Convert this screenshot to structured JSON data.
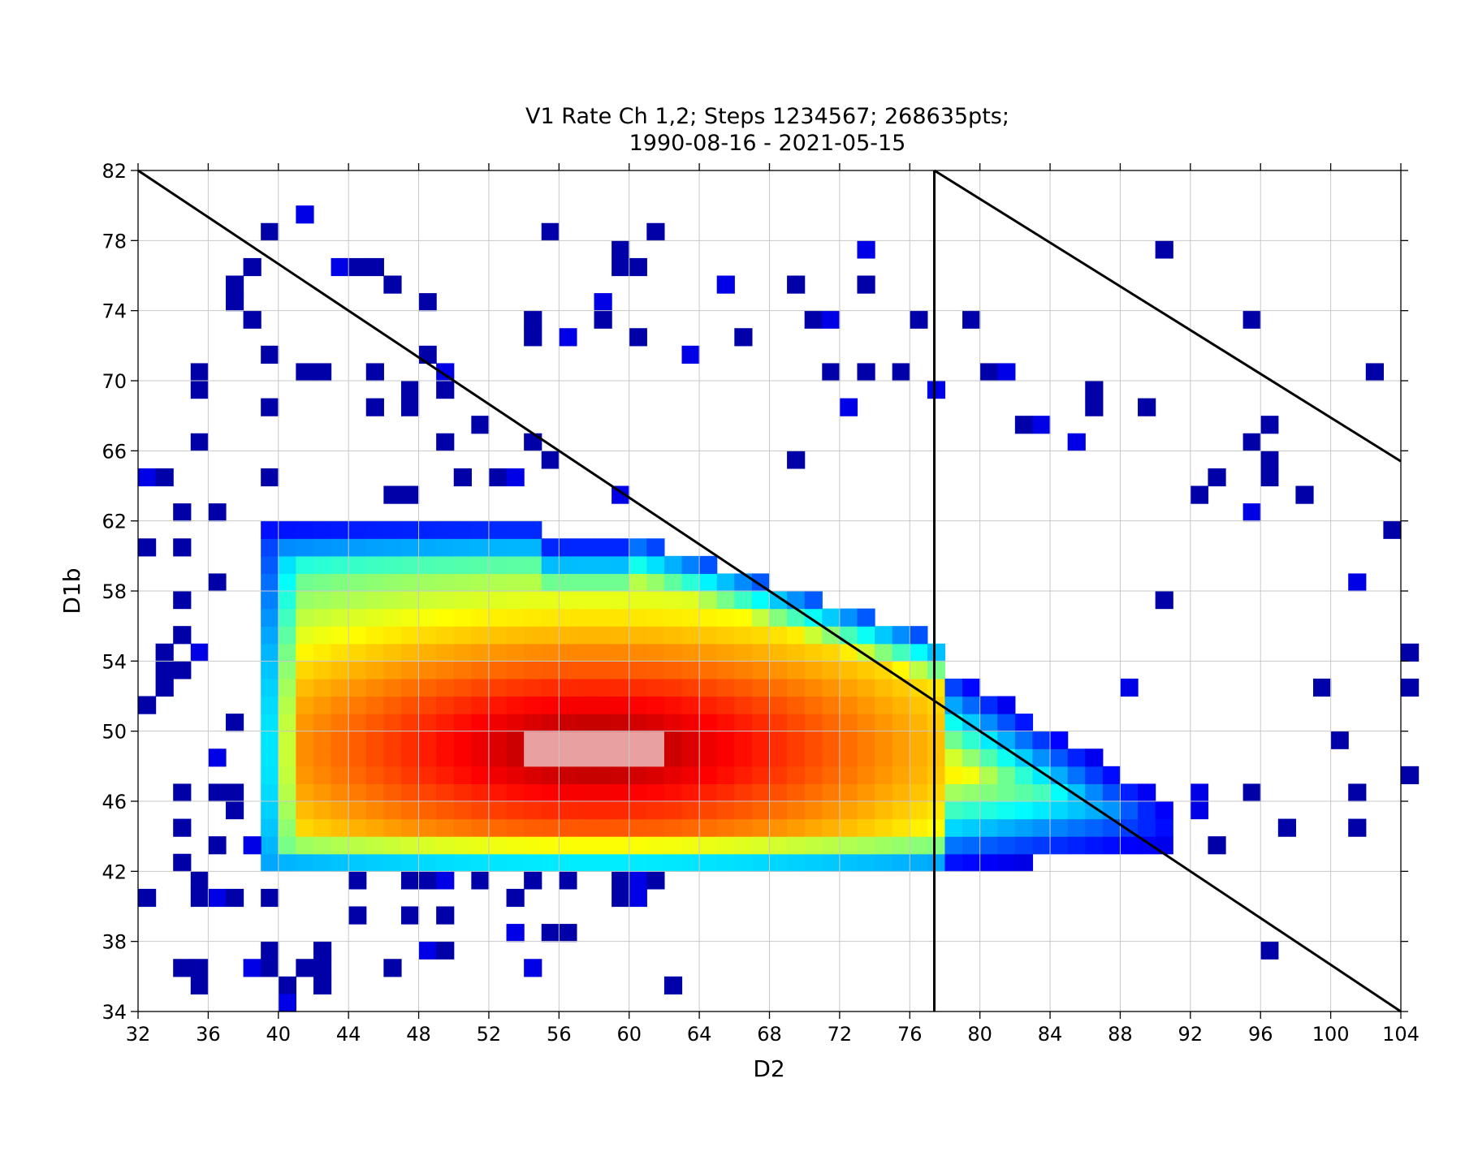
{
  "chart_data": {
    "type": "heatmap",
    "title": "V1 Rate Ch 1,2; Steps 1234567; 268635pts;",
    "subtitle": "1990-08-16 - 2021-05-15",
    "xlabel": "D2",
    "ylabel": "D1b",
    "xlim": [
      32,
      104
    ],
    "ylim": [
      34,
      82
    ],
    "xticks": [
      "32",
      "36",
      "40",
      "44",
      "48",
      "52",
      "56",
      "60",
      "64",
      "68",
      "72",
      "76",
      "80",
      "84",
      "88",
      "92",
      "96",
      "100",
      "104"
    ],
    "yticks": [
      "34",
      "38",
      "42",
      "46",
      "50",
      "54",
      "58",
      "62",
      "66",
      "70",
      "74",
      "78",
      "82"
    ],
    "grid": true,
    "colormap": "jet",
    "bin_size": 1,
    "core": {
      "x_range": [
        39,
        77.5
      ],
      "y_range": [
        42,
        62
      ],
      "peak": [
        58,
        49
      ]
    },
    "tail": {
      "x_range": [
        77.5,
        91
      ],
      "y_range": [
        41,
        54
      ]
    },
    "lines": [
      {
        "x": [
          32,
          104
        ],
        "y": [
          82,
          34
        ]
      },
      {
        "x": [
          77.4,
          104
        ],
        "y": [
          82,
          65.4
        ]
      },
      {
        "x": [
          77.4,
          77.4
        ],
        "y": [
          34,
          82
        ]
      }
    ],
    "scattered_bins": [
      [
        41,
        79
      ],
      [
        39,
        78
      ],
      [
        55,
        78
      ],
      [
        61,
        78
      ],
      [
        59,
        77
      ],
      [
        73,
        77
      ],
      [
        90,
        77
      ],
      [
        59,
        76
      ],
      [
        60,
        76
      ],
      [
        38,
        76
      ],
      [
        43,
        76
      ],
      [
        44,
        76
      ],
      [
        45,
        76
      ],
      [
        37,
        75
      ],
      [
        46,
        75
      ],
      [
        65,
        75
      ],
      [
        69,
        75
      ],
      [
        73,
        75
      ],
      [
        37,
        74
      ],
      [
        48,
        74
      ],
      [
        58,
        74
      ],
      [
        38,
        73
      ],
      [
        54,
        73
      ],
      [
        58,
        73
      ],
      [
        70,
        73
      ],
      [
        71,
        73
      ],
      [
        76,
        73
      ],
      [
        79,
        73
      ],
      [
        95,
        73
      ],
      [
        54,
        72
      ],
      [
        56,
        72
      ],
      [
        60,
        72
      ],
      [
        66,
        72
      ],
      [
        39,
        71
      ],
      [
        48,
        71
      ],
      [
        63,
        71
      ],
      [
        35,
        70
      ],
      [
        41,
        70
      ],
      [
        42,
        70
      ],
      [
        45,
        70
      ],
      [
        49,
        70
      ],
      [
        71,
        70
      ],
      [
        73,
        70
      ],
      [
        75,
        70
      ],
      [
        80,
        70
      ],
      [
        81,
        70
      ],
      [
        102,
        70
      ],
      [
        35,
        69
      ],
      [
        47,
        69
      ],
      [
        49,
        69
      ],
      [
        77,
        69
      ],
      [
        86,
        69
      ],
      [
        39,
        68
      ],
      [
        45,
        68
      ],
      [
        47,
        68
      ],
      [
        72,
        68
      ],
      [
        86,
        68
      ],
      [
        89,
        68
      ],
      [
        51,
        67
      ],
      [
        82,
        67
      ],
      [
        83,
        67
      ],
      [
        96,
        67
      ],
      [
        35,
        66
      ],
      [
        49,
        66
      ],
      [
        54,
        66
      ],
      [
        85,
        66
      ],
      [
        95,
        66
      ],
      [
        55,
        65
      ],
      [
        69,
        65
      ],
      [
        96,
        65
      ],
      [
        32,
        64
      ],
      [
        33,
        64
      ],
      [
        39,
        64
      ],
      [
        50,
        64
      ],
      [
        52,
        64
      ],
      [
        53,
        64
      ],
      [
        93,
        64
      ],
      [
        96,
        64
      ],
      [
        46,
        63
      ],
      [
        47,
        63
      ],
      [
        59,
        63
      ],
      [
        92,
        63
      ],
      [
        98,
        63
      ],
      [
        34,
        62
      ],
      [
        36,
        62
      ],
      [
        95,
        62
      ],
      [
        103,
        61
      ],
      [
        32,
        60
      ],
      [
        34,
        60
      ],
      [
        36,
        58
      ],
      [
        101,
        58
      ],
      [
        34,
        57
      ],
      [
        90,
        57
      ],
      [
        34,
        55
      ],
      [
        33,
        54
      ],
      [
        35,
        54
      ],
      [
        104,
        54
      ],
      [
        33,
        53
      ],
      [
        34,
        53
      ],
      [
        33,
        52
      ],
      [
        88,
        52
      ],
      [
        99,
        52
      ],
      [
        104,
        52
      ],
      [
        32,
        51
      ],
      [
        37,
        50
      ],
      [
        36,
        48
      ],
      [
        100,
        49
      ],
      [
        34,
        46
      ],
      [
        36,
        46
      ],
      [
        37,
        46
      ],
      [
        92,
        46
      ],
      [
        95,
        46
      ],
      [
        101,
        46
      ],
      [
        104,
        47
      ],
      [
        37,
        45
      ],
      [
        92,
        45
      ],
      [
        34,
        44
      ],
      [
        97,
        44
      ],
      [
        101,
        44
      ],
      [
        36,
        43
      ],
      [
        38,
        43
      ],
      [
        93,
        43
      ],
      [
        34,
        42
      ],
      [
        32,
        40
      ],
      [
        35,
        40
      ],
      [
        36,
        40
      ],
      [
        37,
        40
      ],
      [
        39,
        40
      ],
      [
        53,
        40
      ],
      [
        59,
        40
      ],
      [
        60,
        40
      ],
      [
        35,
        41
      ],
      [
        44,
        41
      ],
      [
        47,
        41
      ],
      [
        48,
        41
      ],
      [
        49,
        41
      ],
      [
        51,
        41
      ],
      [
        54,
        41
      ],
      [
        56,
        41
      ],
      [
        59,
        41
      ],
      [
        60,
        41
      ],
      [
        61,
        41
      ],
      [
        44,
        39
      ],
      [
        47,
        39
      ],
      [
        49,
        39
      ],
      [
        53,
        38
      ],
      [
        55,
        38
      ],
      [
        56,
        38
      ],
      [
        39,
        37
      ],
      [
        42,
        37
      ],
      [
        48,
        37
      ],
      [
        49,
        37
      ],
      [
        96,
        37
      ],
      [
        34,
        36
      ],
      [
        35,
        36
      ],
      [
        38,
        36
      ],
      [
        39,
        36
      ],
      [
        41,
        36
      ],
      [
        42,
        36
      ],
      [
        46,
        36
      ],
      [
        54,
        36
      ],
      [
        35,
        35
      ],
      [
        40,
        35
      ],
      [
        42,
        35
      ],
      [
        62,
        35
      ],
      [
        40,
        34
      ]
    ]
  }
}
